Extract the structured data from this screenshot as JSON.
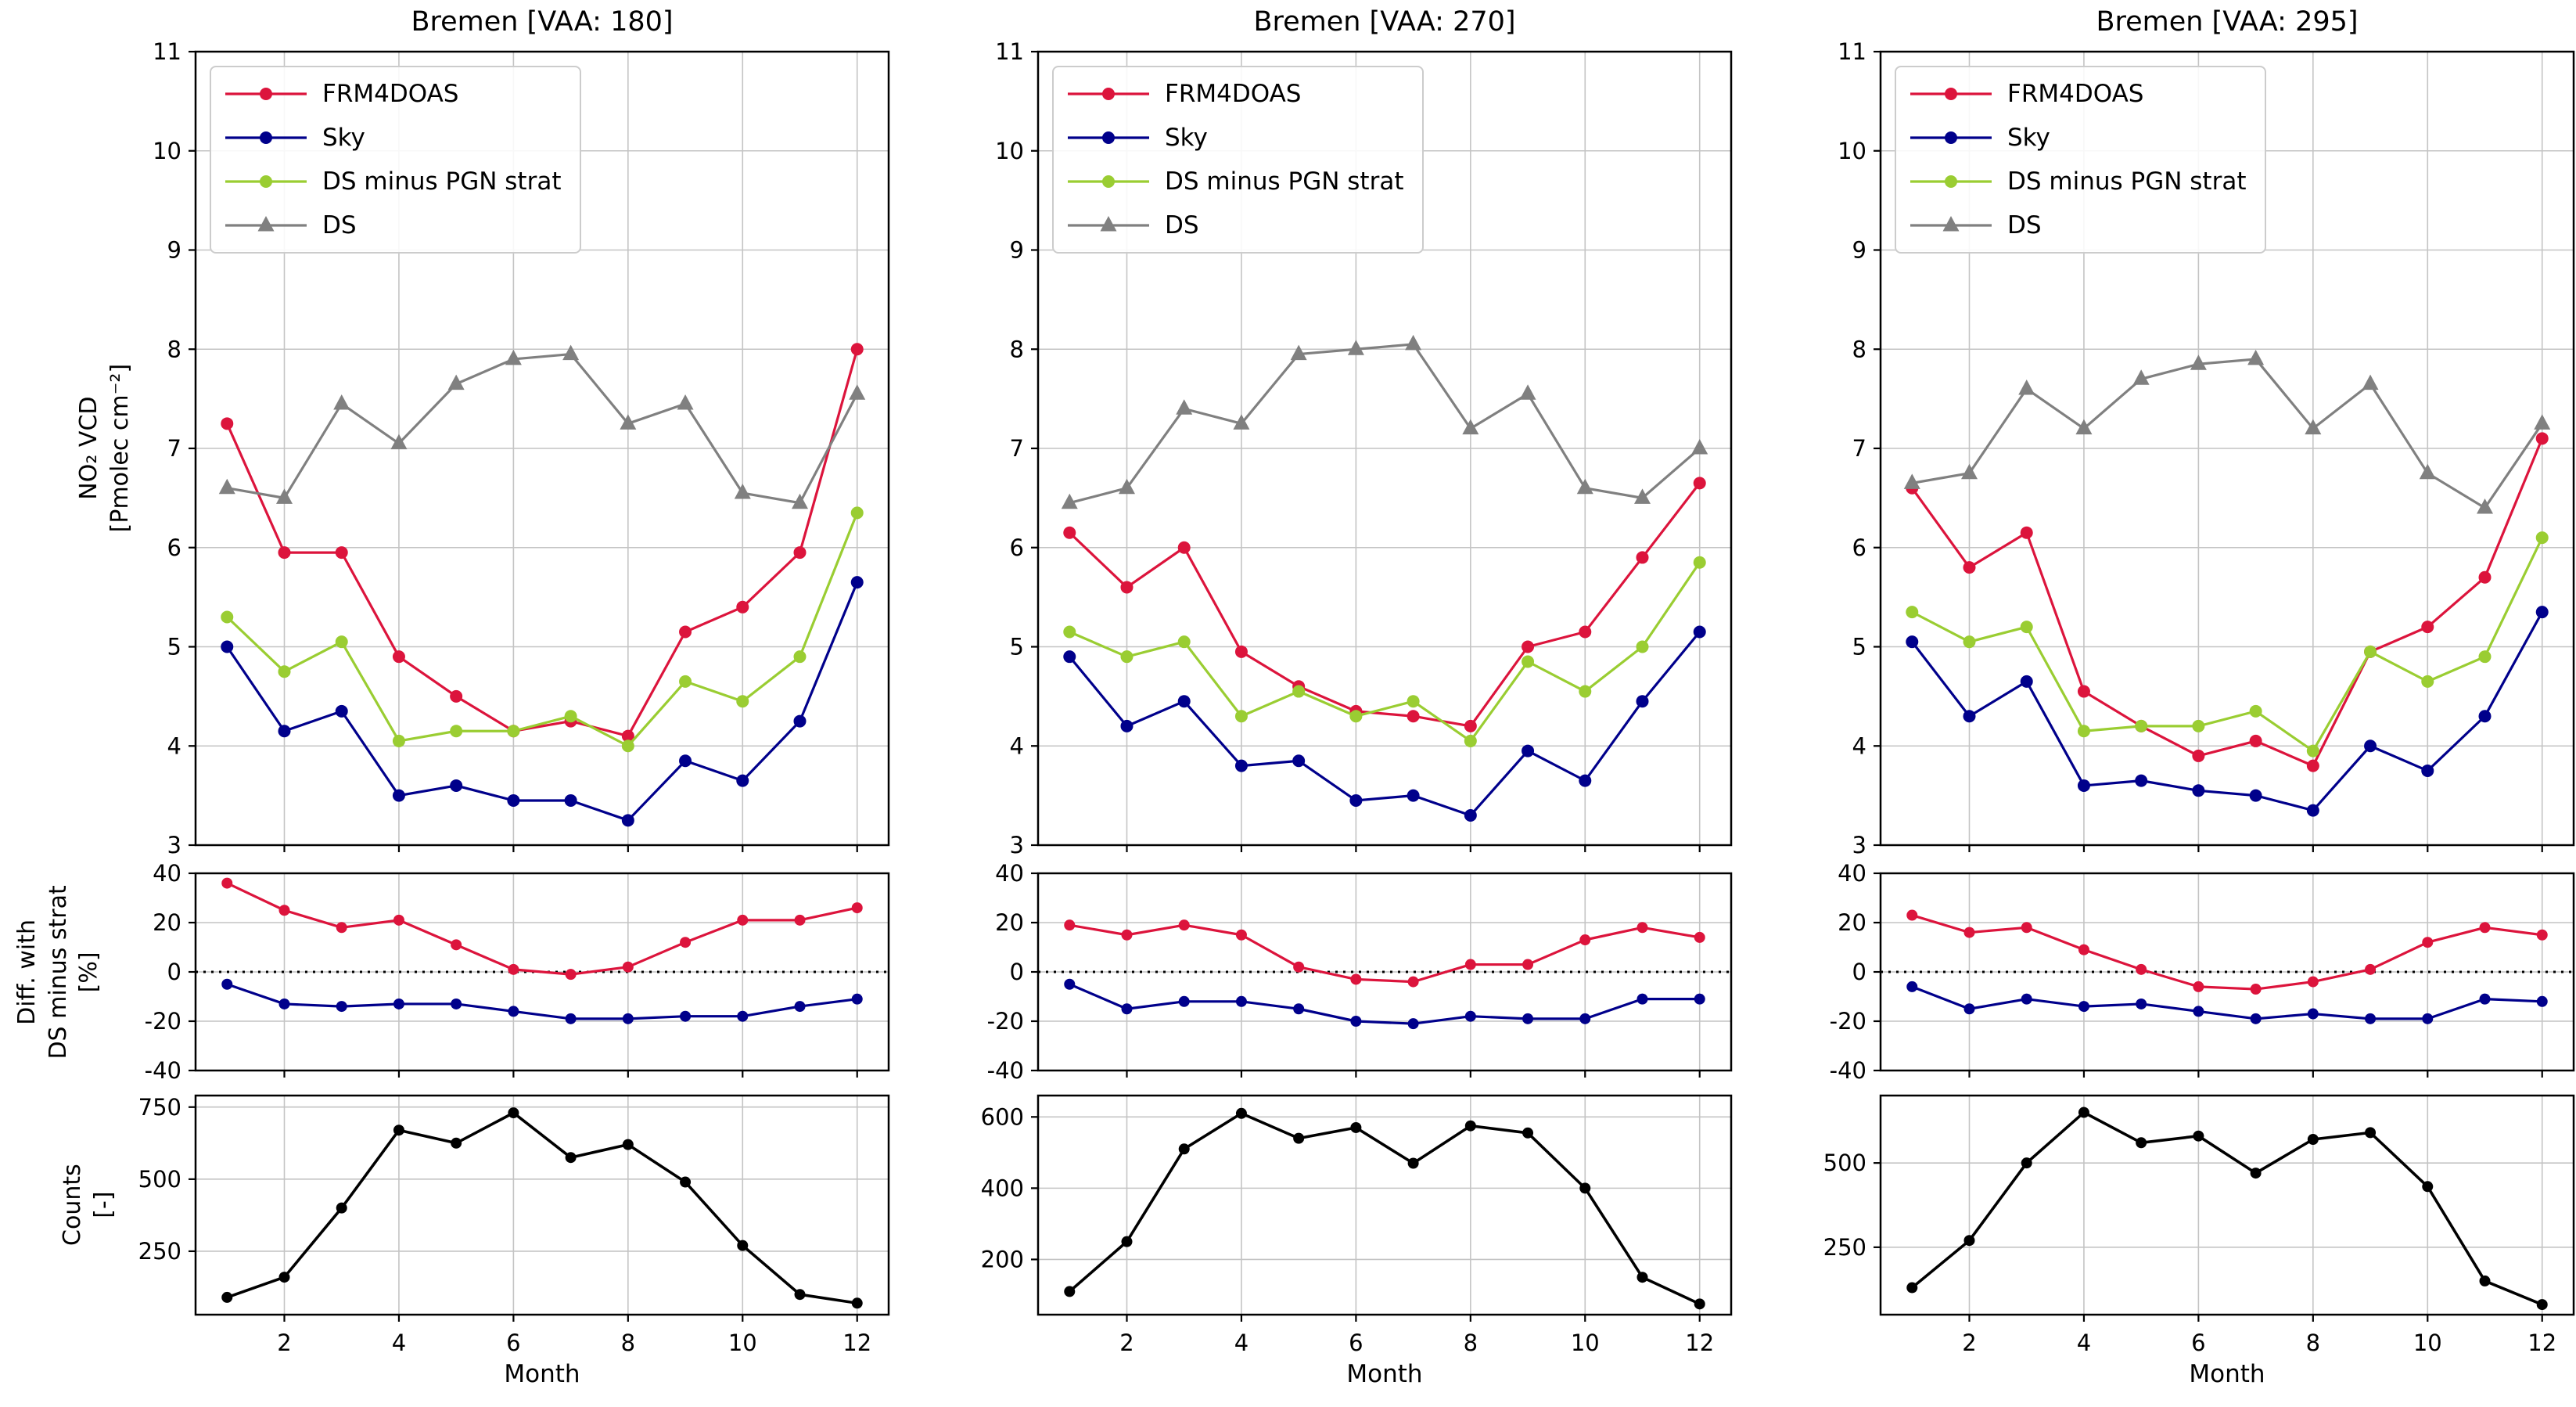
{
  "figure": {
    "xlabel": "Month",
    "ylabel_vcd": [
      "NO₂ VCD",
      "[Pmolec cm⁻²]"
    ],
    "ylabel_diff": [
      "Diff. with",
      "DS minus strat",
      "[%]"
    ],
    "ylabel_counts": [
      "Counts",
      "[-]"
    ],
    "legend": [
      {
        "label": "FRM4DOAS",
        "color_key": "frm4doas",
        "marker": "circle"
      },
      {
        "label": "Sky",
        "color_key": "sky",
        "marker": "circle"
      },
      {
        "label": "DS minus PGN strat",
        "color_key": "ds_minus_pgn_strat",
        "marker": "circle"
      },
      {
        "label": "DS",
        "color_key": "ds",
        "marker": "triangle"
      }
    ],
    "colors": {
      "frm4doas": "#dc143c",
      "sky": "#00008b",
      "ds_minus_pgn_strat": "#9acd32",
      "ds": "#808080",
      "counts": "#000000",
      "grid": "#c4c4c4",
      "zero_line": "#000000"
    }
  },
  "chart_data": [
    {
      "type": "line",
      "title": "Bremen [VAA: 180]",
      "x": [
        1,
        2,
        3,
        4,
        5,
        6,
        7,
        8,
        9,
        10,
        11,
        12
      ],
      "xlim": [
        0.45,
        12.55
      ],
      "xticks": [
        2,
        4,
        6,
        8,
        10,
        12
      ],
      "panels": {
        "vcd": {
          "ylabel": "NO₂ VCD [Pmolec cm⁻²]",
          "ylim": [
            3,
            11
          ],
          "yticks": [
            3,
            4,
            5,
            6,
            7,
            8,
            9,
            10,
            11
          ],
          "series": [
            {
              "name": "FRM4DOAS",
              "color_key": "frm4doas",
              "marker": "circle",
              "values": [
                7.25,
                5.95,
                5.95,
                4.9,
                4.5,
                4.15,
                4.25,
                4.1,
                5.15,
                5.4,
                5.95,
                8.0
              ]
            },
            {
              "name": "Sky",
              "color_key": "sky",
              "marker": "circle",
              "values": [
                5.0,
                4.15,
                4.35,
                3.5,
                3.6,
                3.45,
                3.45,
                3.25,
                3.85,
                3.65,
                4.25,
                5.65
              ]
            },
            {
              "name": "DS minus PGN strat",
              "color_key": "ds_minus_pgn_strat",
              "marker": "circle",
              "values": [
                5.3,
                4.75,
                5.05,
                4.05,
                4.15,
                4.15,
                4.3,
                4.0,
                4.65,
                4.45,
                4.9,
                6.35
              ]
            },
            {
              "name": "DS",
              "color_key": "ds",
              "marker": "triangle",
              "values": [
                6.6,
                6.5,
                7.45,
                7.05,
                7.65,
                7.9,
                7.95,
                7.25,
                7.45,
                6.55,
                6.45,
                7.55
              ]
            }
          ]
        },
        "diff": {
          "ylabel": "Diff. with DS minus strat [%]",
          "ylim": [
            -40,
            40
          ],
          "yticks": [
            -40,
            -20,
            0,
            20,
            40
          ],
          "zero_line": true,
          "series": [
            {
              "name": "FRM4DOAS",
              "color_key": "frm4doas",
              "marker": "circle",
              "values": [
                36,
                25,
                18,
                21,
                11,
                1,
                -1,
                2,
                12,
                21,
                21,
                26
              ]
            },
            {
              "name": "Sky",
              "color_key": "sky",
              "marker": "circle",
              "values": [
                -5,
                -13,
                -14,
                -13,
                -13,
                -16,
                -19,
                -19,
                -18,
                -18,
                -14,
                -11
              ]
            }
          ]
        },
        "counts": {
          "ylabel": "Counts [-]",
          "ylim": [
            30,
            790
          ],
          "yticks": [
            250,
            500,
            750
          ],
          "series": [
            {
              "name": "Counts",
              "color_key": "counts",
              "marker": "circle",
              "values": [
                90,
                160,
                400,
                670,
                625,
                730,
                575,
                620,
                490,
                270,
                100,
                70
              ]
            }
          ]
        }
      }
    },
    {
      "type": "line",
      "title": "Bremen [VAA: 270]",
      "x": [
        1,
        2,
        3,
        4,
        5,
        6,
        7,
        8,
        9,
        10,
        11,
        12
      ],
      "xlim": [
        0.45,
        12.55
      ],
      "xticks": [
        2,
        4,
        6,
        8,
        10,
        12
      ],
      "panels": {
        "vcd": {
          "ylabel": "NO₂ VCD [Pmolec cm⁻²]",
          "ylim": [
            3,
            11
          ],
          "yticks": [
            3,
            4,
            5,
            6,
            7,
            8,
            9,
            10,
            11
          ],
          "series": [
            {
              "name": "FRM4DOAS",
              "color_key": "frm4doas",
              "marker": "circle",
              "values": [
                6.15,
                5.6,
                6.0,
                4.95,
                4.6,
                4.35,
                4.3,
                4.2,
                5.0,
                5.15,
                5.9,
                6.65
              ]
            },
            {
              "name": "Sky",
              "color_key": "sky",
              "marker": "circle",
              "values": [
                4.9,
                4.2,
                4.45,
                3.8,
                3.85,
                3.45,
                3.5,
                3.3,
                3.95,
                3.65,
                4.45,
                5.15
              ]
            },
            {
              "name": "DS minus PGN strat",
              "color_key": "ds_minus_pgn_strat",
              "marker": "circle",
              "values": [
                5.15,
                4.9,
                5.05,
                4.3,
                4.55,
                4.3,
                4.45,
                4.05,
                4.85,
                4.55,
                5.0,
                5.85
              ]
            },
            {
              "name": "DS",
              "color_key": "ds",
              "marker": "triangle",
              "values": [
                6.45,
                6.6,
                7.4,
                7.25,
                7.95,
                8.0,
                8.05,
                7.2,
                7.55,
                6.6,
                6.5,
                7.0
              ]
            }
          ]
        },
        "diff": {
          "ylabel": "Diff. with DS minus strat [%]",
          "ylim": [
            -40,
            40
          ],
          "yticks": [
            -40,
            -20,
            0,
            20,
            40
          ],
          "zero_line": true,
          "series": [
            {
              "name": "FRM4DOAS",
              "color_key": "frm4doas",
              "marker": "circle",
              "values": [
                19,
                15,
                19,
                15,
                2,
                -3,
                -4,
                3,
                3,
                13,
                18,
                14
              ]
            },
            {
              "name": "Sky",
              "color_key": "sky",
              "marker": "circle",
              "values": [
                -5,
                -15,
                -12,
                -12,
                -15,
                -20,
                -21,
                -18,
                -19,
                -19,
                -11,
                -11
              ]
            }
          ]
        },
        "counts": {
          "ylabel": "Counts [-]",
          "ylim": [
            45,
            660
          ],
          "yticks": [
            200,
            400,
            600
          ],
          "series": [
            {
              "name": "Counts",
              "color_key": "counts",
              "marker": "circle",
              "values": [
                110,
                250,
                510,
                610,
                540,
                570,
                470,
                575,
                555,
                400,
                150,
                75
              ]
            }
          ]
        }
      }
    },
    {
      "type": "line",
      "title": "Bremen [VAA: 295]",
      "x": [
        1,
        2,
        3,
        4,
        5,
        6,
        7,
        8,
        9,
        10,
        11,
        12
      ],
      "xlim": [
        0.45,
        12.55
      ],
      "xticks": [
        2,
        4,
        6,
        8,
        10,
        12
      ],
      "panels": {
        "vcd": {
          "ylabel": "NO₂ VCD [Pmolec cm⁻²]",
          "ylim": [
            3,
            11
          ],
          "yticks": [
            3,
            4,
            5,
            6,
            7,
            8,
            9,
            10,
            11
          ],
          "series": [
            {
              "name": "FRM4DOAS",
              "color_key": "frm4doas",
              "marker": "circle",
              "values": [
                6.6,
                5.8,
                6.15,
                4.55,
                4.2,
                3.9,
                4.05,
                3.8,
                4.95,
                5.2,
                5.7,
                7.1
              ]
            },
            {
              "name": "Sky",
              "color_key": "sky",
              "marker": "circle",
              "values": [
                5.05,
                4.3,
                4.65,
                3.6,
                3.65,
                3.55,
                3.5,
                3.35,
                4.0,
                3.75,
                4.3,
                5.35
              ]
            },
            {
              "name": "DS minus PGN strat",
              "color_key": "ds_minus_pgn_strat",
              "marker": "circle",
              "values": [
                5.35,
                5.05,
                5.2,
                4.15,
                4.2,
                4.2,
                4.35,
                3.95,
                4.95,
                4.65,
                4.9,
                6.1
              ]
            },
            {
              "name": "DS",
              "color_key": "ds",
              "marker": "triangle",
              "values": [
                6.65,
                6.75,
                7.6,
                7.2,
                7.7,
                7.85,
                7.9,
                7.2,
                7.65,
                6.75,
                6.4,
                7.25
              ]
            }
          ]
        },
        "diff": {
          "ylabel": "Diff. with DS minus strat [%]",
          "ylim": [
            -40,
            40
          ],
          "yticks": [
            -40,
            -20,
            0,
            20,
            40
          ],
          "zero_line": true,
          "series": [
            {
              "name": "FRM4DOAS",
              "color_key": "frm4doas",
              "marker": "circle",
              "values": [
                23,
                16,
                18,
                9,
                1,
                -6,
                -7,
                -4,
                1,
                12,
                18,
                15
              ]
            },
            {
              "name": "Sky",
              "color_key": "sky",
              "marker": "circle",
              "values": [
                -6,
                -15,
                -11,
                -14,
                -13,
                -16,
                -19,
                -17,
                -19,
                -19,
                -11,
                -12
              ]
            }
          ]
        },
        "counts": {
          "ylabel": "Counts [-]",
          "ylim": [
            50,
            700
          ],
          "yticks": [
            250,
            500
          ],
          "series": [
            {
              "name": "Counts",
              "color_key": "counts",
              "marker": "circle",
              "values": [
                130,
                270,
                500,
                650,
                560,
                580,
                470,
                570,
                590,
                430,
                150,
                80
              ]
            }
          ]
        }
      }
    }
  ]
}
